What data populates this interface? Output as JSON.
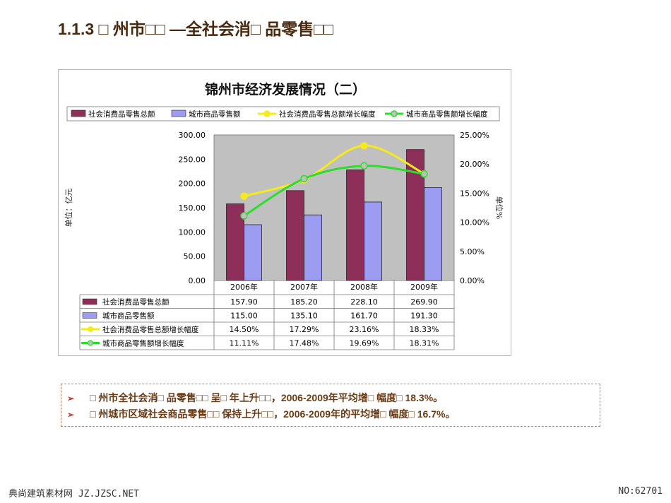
{
  "page": {
    "heading": "1.1.3 □ 州市□□ —全社会消□ 品零售□□",
    "notes": [
      "□ 州市全社会消□ 品零售□□ 呈□ 年上升□□，2006-2009年平均增□ 幅度□ 18.3%。",
      "□ 州城市区域社会商品零售□□ 保持上升□□，2006-2009年的平均增□ 幅度□ 16.7%。"
    ],
    "bullet": "➢",
    "footer_left": "典尚建筑素材网 JZ.JZSC.NET",
    "footer_right": "NO:62701"
  },
  "chart_data": {
    "type": "bar",
    "title": "锦州市经济发展情况（二）",
    "categories": [
      "2006年",
      "2007年",
      "2008年",
      "2009年"
    ],
    "ylabel": "单位：亿元",
    "y2label": "单位%",
    "ylim": [
      0,
      300
    ],
    "y2lim": [
      0,
      0.25
    ],
    "yticks": [
      "0.00",
      "50.00",
      "100.00",
      "150.00",
      "200.00",
      "250.00",
      "300.00"
    ],
    "y2ticks": [
      "0.00%",
      "5.00%",
      "10.00%",
      "15.00%",
      "20.00%",
      "25.00%"
    ],
    "legend_position": "top",
    "series": [
      {
        "name": "社会消费品零售总额",
        "kind": "bar",
        "axis": "left",
        "color": "#8e2f5a",
        "values": [
          157.9,
          185.2,
          228.1,
          269.9
        ],
        "labels": [
          "157.90",
          "185.20",
          "228.10",
          "269.90"
        ]
      },
      {
        "name": "城市商品零售额",
        "kind": "bar",
        "axis": "left",
        "color": "#9c9cf2",
        "values": [
          115.0,
          135.1,
          161.7,
          191.3
        ],
        "labels": [
          "115.00",
          "135.10",
          "161.70",
          "191.30"
        ]
      },
      {
        "name": "社会消费品零售总额增长幅度",
        "kind": "line",
        "axis": "right",
        "color": "#f5ea1a",
        "values": [
          0.145,
          0.1729,
          0.2316,
          0.1833
        ],
        "labels": [
          "14.50%",
          "17.29%",
          "23.16%",
          "18.33%"
        ]
      },
      {
        "name": "城市商品零售额增长幅度",
        "kind": "line",
        "axis": "right",
        "color": "#2ddc2d",
        "values": [
          0.1111,
          0.1748,
          0.1969,
          0.1831
        ],
        "labels": [
          "11.11%",
          "17.48%",
          "19.69%",
          "18.31%"
        ]
      }
    ],
    "plot_background": "#c0c0c0",
    "grid": false
  }
}
